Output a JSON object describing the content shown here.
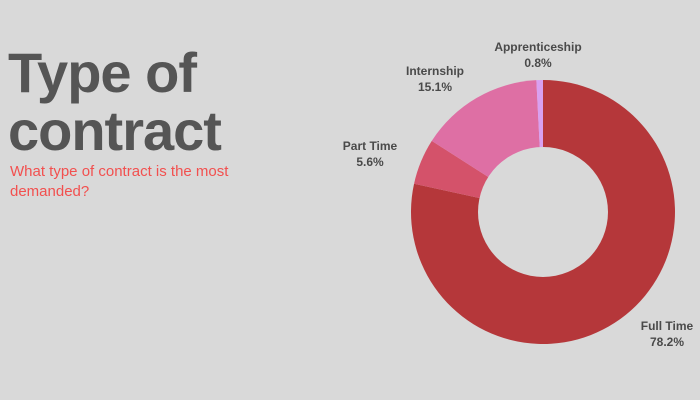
{
  "header": {
    "title_line1": "Type of",
    "title_line2": "contract",
    "subtitle": "What type of contract is the most demanded?"
  },
  "chart_data": {
    "type": "pie",
    "donut": true,
    "title": "Type of contract",
    "subtitle": "What type of contract is the most demanded?",
    "categories": [
      "Full Time",
      "Part Time",
      "Internship",
      "Apprenticeship"
    ],
    "values": [
      78.2,
      5.6,
      15.1,
      0.8
    ],
    "value_labels": [
      "78.2%",
      "5.6%",
      "15.1%",
      "0.8%"
    ],
    "colors": [
      "#b5373a",
      "#d4526a",
      "#de6fa4",
      "#d9a0f0"
    ],
    "start": "12 o'clock",
    "direction": "clockwise",
    "legend": "none"
  }
}
